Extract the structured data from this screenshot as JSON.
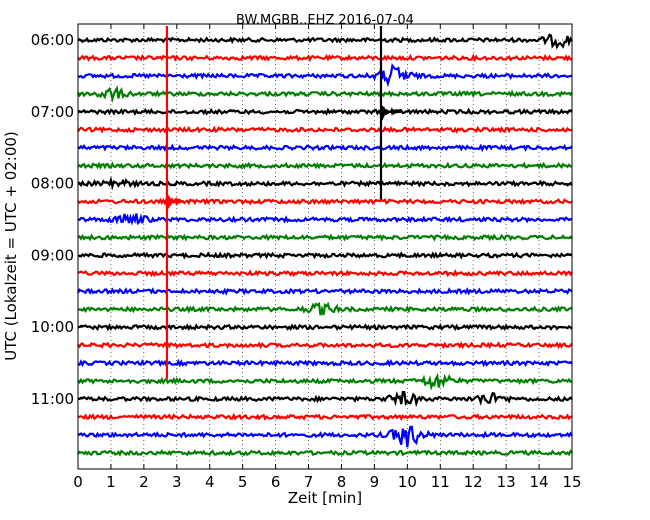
{
  "chart_data": {
    "type": "line",
    "title": "BW.MGBB..EHZ 2016-07-04",
    "xlabel": "Zeit  [min]",
    "ylabel": "UTC (Lokalzeit = UTC + 02:00)",
    "xlim": [
      0,
      15
    ],
    "x_ticks": [
      "0",
      "1",
      "2",
      "3",
      "4",
      "5",
      "6",
      "7",
      "8",
      "9",
      "10",
      "11",
      "12",
      "13",
      "14",
      "15"
    ],
    "y_ticks": [
      "06:00",
      "07:00",
      "08:00",
      "09:00",
      "10:00",
      "11:00"
    ],
    "grid": true,
    "trace_colors": [
      "#000000",
      "#ff0000",
      "#0000ff",
      "#008000"
    ],
    "trace_start": "06:00",
    "trace_interval_min": 15,
    "trace_count": 24,
    "events": [
      {
        "trace_start": "07:00",
        "time_min": 9.2,
        "color": "#000000",
        "peak_amplitude_traces": 5.0,
        "duration_min": 0.6
      },
      {
        "trace_start": "08:15",
        "time_min": 2.7,
        "color": "#ff0000",
        "peak_amplitude_traces": 10.0,
        "duration_min": 0.5
      }
    ],
    "noise_bursts": [
      {
        "trace_start": "06:00",
        "time_min": 14.6,
        "color": "#000000",
        "amplitude": 0.3
      },
      {
        "trace_start": "06:30",
        "time_min": 9.6,
        "color": "#0000ff",
        "amplitude": 0.5
      },
      {
        "trace_start": "06:45",
        "time_min": 1.0,
        "color": "#008000",
        "amplitude": 0.25
      },
      {
        "trace_start": "08:00",
        "time_min": 1.1,
        "color": "#000000",
        "amplitude": 0.2
      },
      {
        "trace_start": "08:30",
        "time_min": 1.6,
        "color": "#0000ff",
        "amplitude": 0.3
      },
      {
        "trace_start": "09:45",
        "time_min": 7.4,
        "color": "#008000",
        "amplitude": 0.25
      },
      {
        "trace_start": "10:45",
        "time_min": 10.9,
        "color": "#008000",
        "amplitude": 0.35
      },
      {
        "trace_start": "11:00",
        "time_min": 9.9,
        "color": "#000000",
        "amplitude": 0.3
      },
      {
        "trace_start": "11:00",
        "time_min": 12.5,
        "color": "#000000",
        "amplitude": 0.25
      },
      {
        "trace_start": "11:30",
        "time_min": 10.0,
        "color": "#0000ff",
        "amplitude": 0.6
      }
    ]
  }
}
